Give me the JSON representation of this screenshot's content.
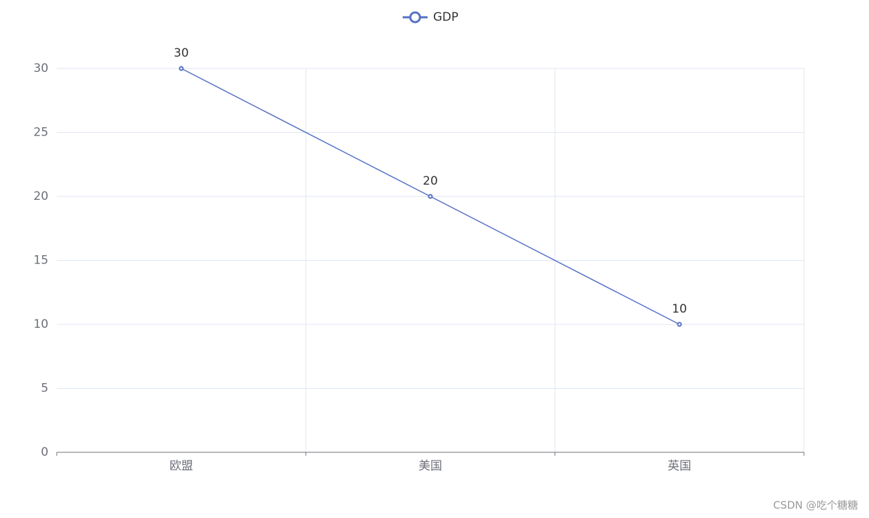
{
  "chart_data": {
    "type": "line",
    "categories": [
      "欧盟",
      "美国",
      "英国"
    ],
    "series": [
      {
        "name": "GDP",
        "color": "#5470c6",
        "values": [
          30,
          20,
          10
        ]
      }
    ],
    "ylim": [
      0,
      30
    ],
    "yticks": [
      0,
      5,
      10,
      15,
      20,
      25,
      30
    ],
    "grid": true,
    "legend": "top"
  },
  "watermark": "CSDN @吃个糖糖"
}
